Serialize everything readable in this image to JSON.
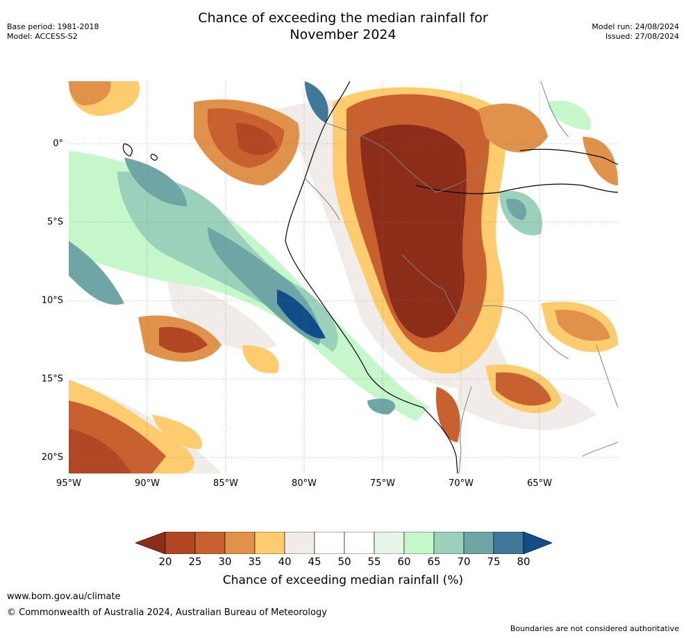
{
  "title_line1": "Chance of exceeding the median rainfall for",
  "title_line2": "November 2024",
  "base_period": "Base period: 1981-2018",
  "model": "Model: ACCESS-S2",
  "model_run": "Model run: 24/08/2024",
  "issued": "Issued: 27/08/2024",
  "x_ticks": [
    "95°W",
    "90°W",
    "85°W",
    "80°W",
    "75°W",
    "70°W",
    "65°W"
  ],
  "y_ticks": [
    "0°",
    "5°S",
    "10°S",
    "15°S",
    "20°S"
  ],
  "colorbar": {
    "ticks": [
      "20",
      "25",
      "30",
      "35",
      "40",
      "45",
      "50",
      "55",
      "60",
      "65",
      "70",
      "75",
      "80"
    ],
    "colors": [
      "#8c2d1a",
      "#b14725",
      "#c8612f",
      "#e0924a",
      "#fdcc6e",
      "#f0ece8",
      "#ffffff",
      "#ffffff",
      "#e7f5e8",
      "#c6f7cb",
      "#9bd0bb",
      "#6ea5a5",
      "#3f7898",
      "#124d8a"
    ],
    "label": "Chance of exceeding median rainfall (%)"
  },
  "footer": {
    "url": "www.bom.gov.au/climate",
    "copyright": "© Commonwealth of Australia 2024, Australian Bureau of Meteorology",
    "disclaimer": "Boundaries are not considered authoritative"
  }
}
